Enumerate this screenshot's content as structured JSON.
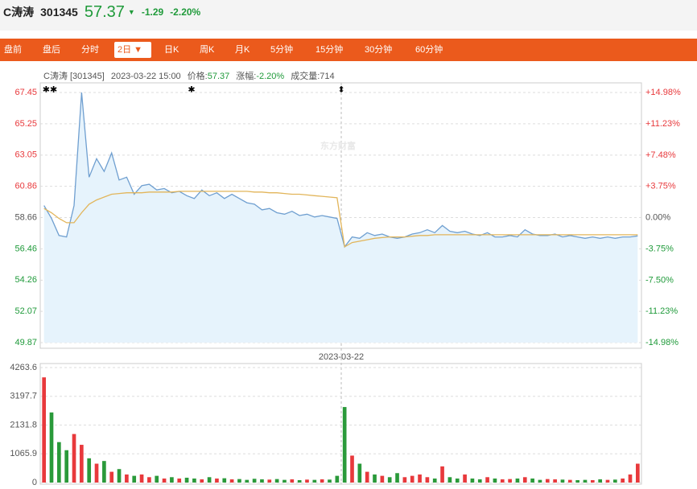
{
  "header": {
    "name": "C涛涛",
    "code": "301345",
    "price": 57.37,
    "arrow": "▼",
    "change": -1.29,
    "change_pct": "-2.20%"
  },
  "tabs": [
    "盘前",
    "盘后",
    "分时",
    "2日 ▼",
    "日K",
    "周K",
    "月K",
    "5分钟",
    "15分钟",
    "30分钟",
    "60分钟"
  ],
  "selected_tab": 3,
  "chart_data": [
    {
      "type": "line",
      "info": {
        "name": "C涛涛 [301345]",
        "time": "2023-03-22 15:00",
        "price_label": "价格:",
        "price": 57.37,
        "chg_label": "涨幅:",
        "chg": "-2.20%",
        "vol_label": "成交量:",
        "vol": 714
      },
      "watermark": "东方财富",
      "markers": [
        "✱✱",
        "✱",
        "⬍"
      ],
      "x_label": "2023-03-22",
      "series": [
        {
          "name": "价格",
          "color": "#6f9fd0",
          "values": [
            59.5,
            58.6,
            57.4,
            57.3,
            59.5,
            67.45,
            61.5,
            62.8,
            61.9,
            63.2,
            61.3,
            61.5,
            60.3,
            60.9,
            61.0,
            60.6,
            60.7,
            60.4,
            60.5,
            60.2,
            60.0,
            60.6,
            60.2,
            60.4,
            60.0,
            60.3,
            60.0,
            59.7,
            59.6,
            59.2,
            59.3,
            59.0,
            58.9,
            59.1,
            58.8,
            58.9,
            58.7,
            58.8,
            58.7,
            58.6,
            56.6,
            57.3,
            57.2,
            57.6,
            57.4,
            57.5,
            57.3,
            57.2,
            57.3,
            57.5,
            57.6,
            57.8,
            57.6,
            58.1,
            57.7,
            57.6,
            57.7,
            57.5,
            57.4,
            57.6,
            57.3,
            57.3,
            57.4,
            57.3,
            57.8,
            57.5,
            57.4,
            57.4,
            57.5,
            57.3,
            57.4,
            57.3,
            57.2,
            57.3,
            57.2,
            57.3,
            57.2,
            57.3,
            57.3,
            57.37
          ]
        },
        {
          "name": "均价",
          "color": "#e2b55a",
          "values": [
            59.3,
            59.0,
            58.6,
            58.3,
            58.3,
            59.0,
            59.6,
            59.9,
            60.1,
            60.3,
            60.35,
            60.4,
            60.4,
            60.4,
            60.45,
            60.45,
            60.45,
            60.45,
            60.5,
            60.5,
            60.5,
            60.5,
            60.5,
            60.5,
            60.5,
            60.5,
            60.5,
            60.5,
            60.45,
            60.45,
            60.4,
            60.4,
            60.35,
            60.3,
            60.3,
            60.25,
            60.2,
            60.15,
            60.1,
            60.05,
            56.6,
            56.9,
            57.0,
            57.1,
            57.2,
            57.25,
            57.3,
            57.3,
            57.3,
            57.35,
            57.4,
            57.4,
            57.45,
            57.45,
            57.45,
            57.45,
            57.45,
            57.45,
            57.45,
            57.45,
            57.45,
            57.45,
            57.45,
            57.45,
            57.45,
            57.45,
            57.45,
            57.45,
            57.45,
            57.45,
            57.45,
            57.45,
            57.45,
            57.45,
            57.45,
            57.45,
            57.45,
            57.45,
            57.45,
            57.45
          ]
        }
      ],
      "ylim": [
        49.87,
        67.45
      ],
      "yticks": [
        67.45,
        65.25,
        63.05,
        60.86,
        58.66,
        56.46,
        54.26,
        52.07,
        49.87
      ],
      "y2lim": [
        -14.98,
        14.98
      ],
      "y2ticks": [
        {
          "value": 14.98,
          "label": "+14.98%"
        },
        {
          "value": 11.23,
          "label": "+11.23%"
        },
        {
          "value": 7.48,
          "label": "+7.48%"
        },
        {
          "value": 3.75,
          "label": "+3.75%"
        },
        {
          "value": 0,
          "label": "0.00%"
        },
        {
          "value": -3.75,
          "label": "-3.75%"
        },
        {
          "value": -7.5,
          "label": "-7.50%"
        },
        {
          "value": -11.23,
          "label": "-11.23%"
        },
        {
          "value": -14.98,
          "label": "-14.98%"
        }
      ],
      "grid": true
    },
    {
      "type": "bar",
      "values": [
        3900,
        2600,
        1500,
        1200,
        1800,
        1400,
        900,
        700,
        800,
        400,
        500,
        300,
        250,
        300,
        200,
        250,
        150,
        200,
        150,
        180,
        150,
        120,
        200,
        150,
        160,
        120,
        130,
        100,
        140,
        120,
        110,
        130,
        100,
        120,
        90,
        110,
        100,
        120,
        110,
        250,
        2800,
        1000,
        700,
        400,
        300,
        250,
        200,
        350,
        200,
        250,
        300,
        200,
        150,
        600,
        200,
        150,
        300,
        150,
        120,
        200,
        150,
        120,
        130,
        150,
        200,
        150,
        100,
        130,
        120,
        110,
        100,
        90,
        100,
        90,
        120,
        100,
        110,
        150,
        300,
        700
      ],
      "up_color": "#e8393c",
      "down_color": "#2a9a3a",
      "ylim": [
        0,
        4263.6
      ],
      "yticks": [
        4263.6,
        3197.7,
        2131.8,
        1065.9,
        0
      ],
      "grid": true
    }
  ]
}
